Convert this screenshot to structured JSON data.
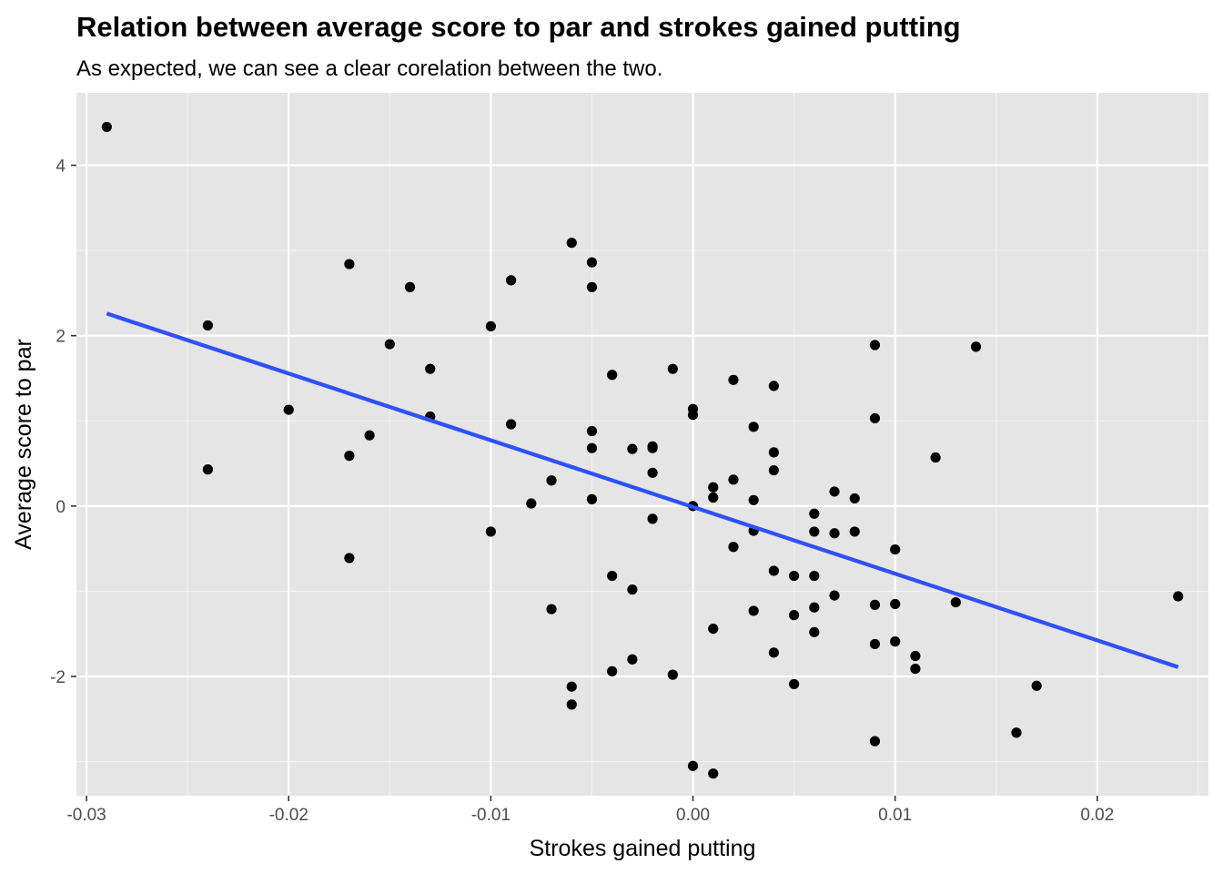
{
  "chart_data": {
    "type": "scatter",
    "title": "Relation between average score to par and strokes gained putting",
    "subtitle": "As expected, we can see a clear corelation between the two.",
    "xlabel": "Strokes gained putting",
    "ylabel": "Average score to par",
    "xlim": [
      -0.0305,
      0.0255
    ],
    "ylim": [
      -3.4,
      4.85
    ],
    "x_major_ticks": [
      -0.03,
      -0.02,
      -0.01,
      0.0,
      0.01,
      0.02
    ],
    "x_tick_labels": [
      "-0.03",
      "-0.02",
      "-0.01",
      "0.00",
      "0.01",
      "0.02"
    ],
    "x_minor_ticks": [
      -0.025,
      -0.015,
      -0.005,
      0.005,
      0.015,
      0.025
    ],
    "y_major_ticks": [
      -2,
      0,
      2,
      4
    ],
    "y_tick_labels": [
      "-2",
      "0",
      "2",
      "4"
    ],
    "y_minor_ticks": [
      -3,
      -1,
      1,
      3
    ],
    "grid": true,
    "colors": {
      "panel_background": "#e5e5e5",
      "grid_major": "#ffffff",
      "grid_minor": "#f2f2f2",
      "points": "#000000",
      "trend_line": "#3050f8",
      "tick_mark": "#333333"
    },
    "trend_line": {
      "name": "linear fit",
      "x": [
        -0.029,
        0.024
      ],
      "y": [
        2.26,
        -1.89
      ]
    },
    "points": {
      "x": [
        -0.029,
        -0.024,
        -0.024,
        -0.02,
        -0.017,
        -0.017,
        -0.017,
        -0.016,
        -0.015,
        -0.014,
        -0.013,
        -0.013,
        -0.01,
        -0.01,
        -0.009,
        -0.009,
        -0.008,
        -0.007,
        -0.007,
        -0.006,
        -0.006,
        -0.006,
        -0.005,
        -0.005,
        -0.005,
        -0.005,
        -0.005,
        -0.004,
        -0.004,
        -0.004,
        -0.003,
        -0.003,
        -0.003,
        -0.002,
        -0.002,
        -0.002,
        -0.002,
        -0.001,
        -0.001,
        0.0,
        0.0,
        0.0,
        0.0,
        0.001,
        0.001,
        0.001,
        0.001,
        0.002,
        0.002,
        0.002,
        0.003,
        0.003,
        0.003,
        0.003,
        0.004,
        0.004,
        0.004,
        0.004,
        0.004,
        0.005,
        0.005,
        0.005,
        0.006,
        0.006,
        0.006,
        0.006,
        0.006,
        0.007,
        0.007,
        0.007,
        0.008,
        0.008,
        0.009,
        0.009,
        0.009,
        0.009,
        0.009,
        0.01,
        0.01,
        0.01,
        0.011,
        0.011,
        0.012,
        0.013,
        0.014,
        0.016,
        0.017,
        0.024
      ],
      "y": [
        4.45,
        2.12,
        0.43,
        1.13,
        2.84,
        0.59,
        -0.61,
        0.83,
        1.9,
        2.57,
        1.61,
        1.05,
        2.11,
        -0.3,
        2.65,
        0.96,
        0.03,
        0.3,
        -1.21,
        3.09,
        -2.12,
        -2.33,
        2.86,
        2.57,
        0.88,
        0.68,
        0.08,
        1.54,
        -0.82,
        -1.94,
        0.67,
        -0.98,
        -1.8,
        0.7,
        0.68,
        0.39,
        -0.15,
        1.61,
        -1.98,
        1.14,
        1.07,
        0.0,
        -3.05,
        0.22,
        0.1,
        -1.44,
        -3.14,
        1.48,
        0.31,
        -0.48,
        0.93,
        0.07,
        -0.29,
        -1.23,
        1.41,
        0.63,
        0.42,
        -0.76,
        -1.72,
        -0.82,
        -1.28,
        -2.09,
        -0.09,
        -0.3,
        -0.82,
        -1.19,
        -1.48,
        0.17,
        -0.32,
        -1.05,
        0.09,
        -0.3,
        1.89,
        1.03,
        -1.16,
        -1.62,
        -2.76,
        -0.51,
        -1.15,
        -1.59,
        -1.76,
        -1.91,
        0.57,
        -1.13,
        1.87,
        -2.66,
        -2.11,
        -1.06
      ]
    }
  }
}
